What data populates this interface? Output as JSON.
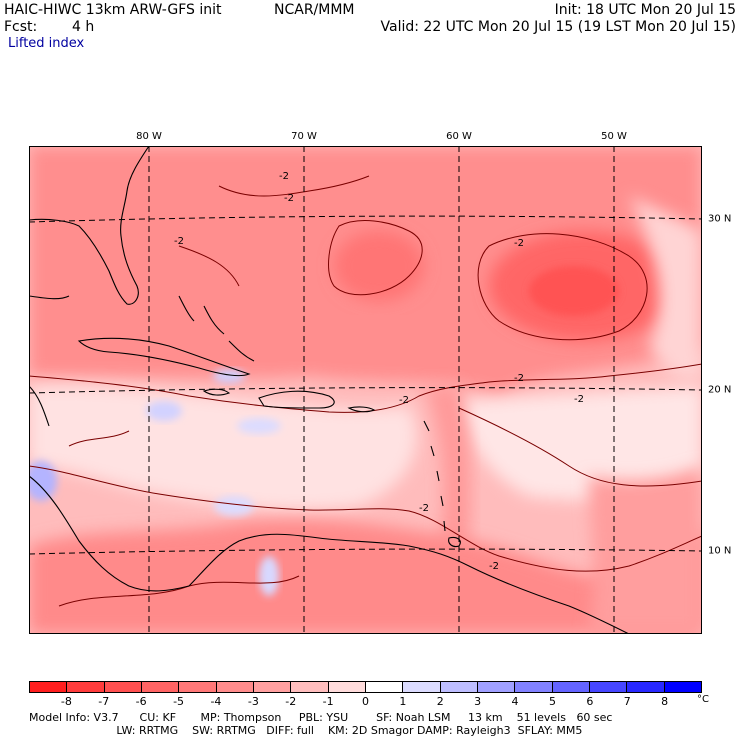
{
  "header": {
    "model_title": "HAIC-HIWC 13km ARW-GFS init",
    "center": "NCAR/MMM",
    "init_time": "Init: 18 UTC Mon 20 Jul 15",
    "fcst_label": "Fcst:",
    "fcst_value": "4 h",
    "valid_time": "Valid: 22 UTC Mon 20 Jul 15 (19 LST Mon 20 Jul 15)",
    "field_name": "Lifted index"
  },
  "map": {
    "lon_labels": [
      "80 W",
      "70 W",
      "60 W",
      "50 W"
    ],
    "lat_labels": [
      "30 N",
      "20 N",
      "10 N"
    ],
    "contour_labels": [
      "-2",
      "-2",
      "-2",
      "-2",
      "-2",
      "-2",
      "-2",
      "-2",
      "-2"
    ]
  },
  "colorbar": {
    "ticks": [
      "-8",
      "-7",
      "-6",
      "-5",
      "-4",
      "-3",
      "-2",
      "-1",
      "0",
      "1",
      "2",
      "3",
      "4",
      "5",
      "6",
      "7",
      "8"
    ],
    "unit": "°C",
    "colors": [
      "#ff1e1e",
      "#ff3c3c",
      "#ff5050",
      "#ff6464",
      "#ff7878",
      "#ff8c8c",
      "#ffa0a0",
      "#ffbebe",
      "#ffdcdc",
      "#ffffff",
      "#dcdcff",
      "#bebeff",
      "#a0a0ff",
      "#8282ff",
      "#6464ff",
      "#4646ff",
      "#2828ff",
      "#0000ff"
    ]
  },
  "footer": {
    "line1": "Model Info: V3.7      CU: KF       MP: Thompson     PBL: YSU        SF: Noah LSM     13 km    51 levels   60 sec",
    "line2": "                         LW: RRTMG    SW: RRTMG   DIFF: full    KM: 2D Smagor DAMP: Rayleigh3  SFLAY: MM5"
  }
}
